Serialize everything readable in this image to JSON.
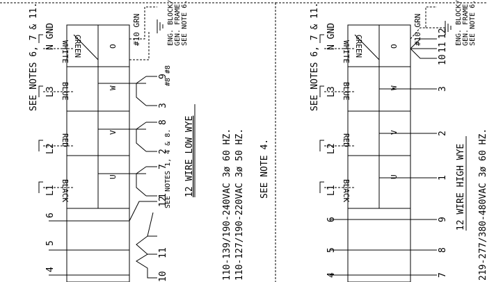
{
  "left": {
    "notes_line1": "SEE NOTES 6, 7 & 11.",
    "lines": [
      "L1",
      "L2",
      "L3",
      "N GND"
    ],
    "wires": [
      "BLACK",
      "RED",
      "BLUE",
      "WHITE",
      "GREEN"
    ],
    "terms": [
      "U",
      "V",
      "W",
      "O"
    ],
    "grn": "#10 GRN",
    "block": "ENG. BLOCK/",
    "frame": "GEN. FRAME",
    "note6": "SEE NOTE 6.",
    "n8a": "#8",
    "n8b": "#8",
    "notes1": "SEE NOTES 1, 4 & 8.",
    "lead_nums": [
      "1",
      "7",
      "2",
      "8",
      "3",
      "9",
      "12",
      "11",
      "10"
    ],
    "coil_nums": [
      "4",
      "5",
      "6"
    ],
    "title": "12 WIRE LOW WYE",
    "volt1": "110-139/190-240VAC 3ø 60 HZ.",
    "volt2": "110-127/190-220VAC 3ø 50 HZ.",
    "see4": "SEE NOTE 4."
  },
  "right": {
    "notes_line1": "SEE NOTES 6, 7 & 11.",
    "lines": [
      "L1",
      "L2",
      "L3",
      "N GND"
    ],
    "wires": [
      "BLACK",
      "RED",
      "BLUE",
      "WHITE",
      "GREEN"
    ],
    "terms": [
      "U",
      "V",
      "W",
      "O"
    ],
    "grn": "#10 GRN",
    "block": "ENG. BLOCK/",
    "frame": "GEN. FRAME",
    "note6": "SEE NOTE 6.",
    "top_nums": [
      "10",
      "11",
      "12"
    ],
    "lead_nums": [
      "1",
      "2",
      "3"
    ],
    "low_nums": [
      "9",
      "8",
      "7"
    ],
    "coil_nums": [
      "4",
      "5",
      "6"
    ],
    "title": "12 WIRE HIGH WYE",
    "volt1": "219-277/380-480VAC 3ø 60 HZ."
  }
}
